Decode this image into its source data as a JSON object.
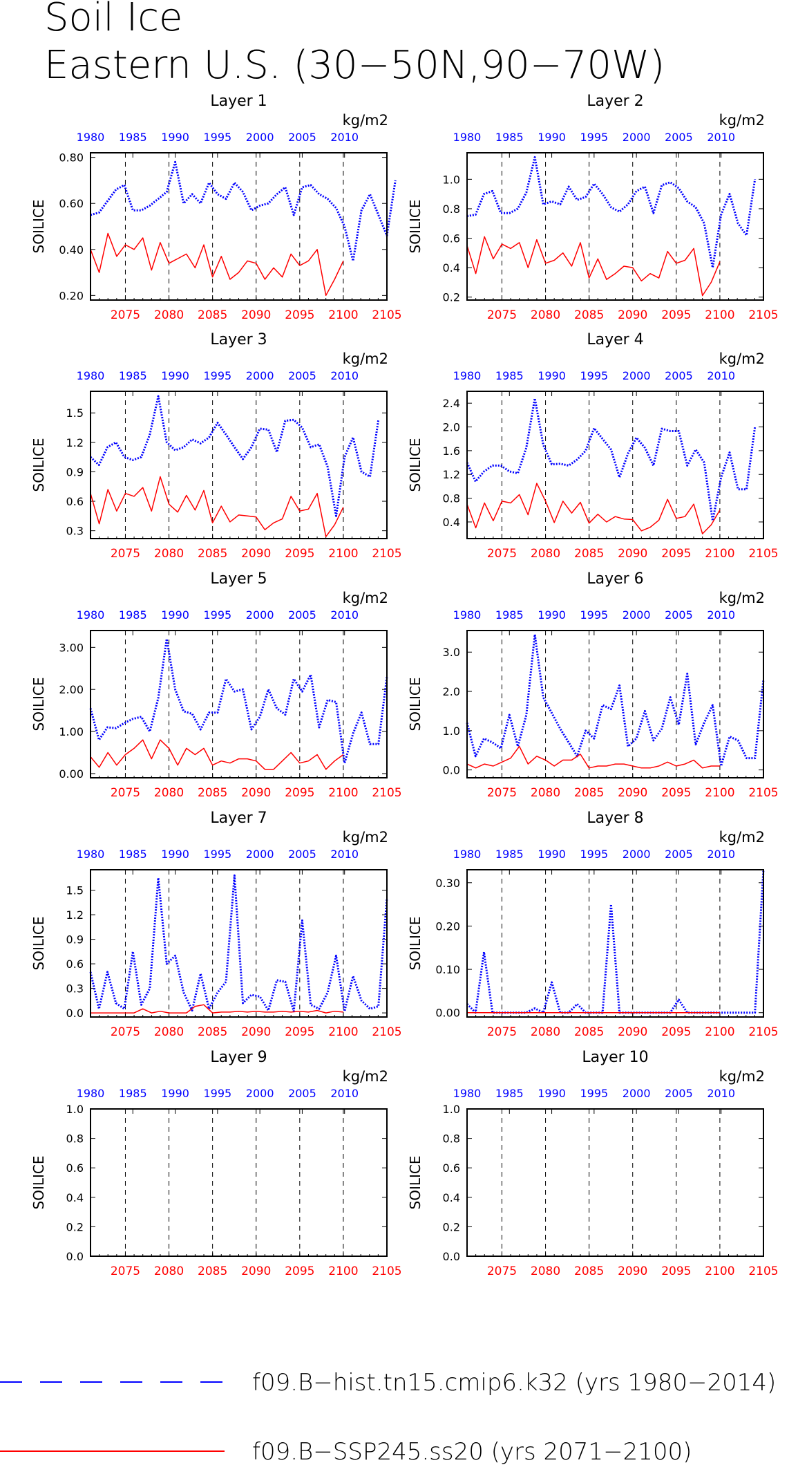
{
  "title": "Soil Ice",
  "subtitle": "Eastern U.S. (30−50N,90−70W)",
  "colors": {
    "hist": "#0000ff",
    "ssp": "#ff0000"
  },
  "legend": [
    {
      "label": "f09.B−hist.tn15.cmip6.k32 (yrs 1980−2014)",
      "color": "#0000ff",
      "style": "dashed"
    },
    {
      "label": "f09.B−SSP245.ss20 (yrs 2071−2100)",
      "color": "#ff0000",
      "style": "solid"
    }
  ],
  "chart_data": [
    {
      "type": "line",
      "title": "Layer 1",
      "units": "kg/m2",
      "ylabel": "SOILICE",
      "ylim": [
        0.18,
        0.82
      ],
      "yticks": [
        0.2,
        0.4,
        0.6,
        0.8
      ],
      "ytick_labels": [
        "0.20",
        "0.40",
        "0.60",
        "0.80"
      ],
      "x_top_ticks": [
        "1980",
        "1985",
        "1990",
        "1995",
        "2000",
        "2005",
        "2010"
      ],
      "x_bottom_ticks": [
        "2075",
        "2080",
        "2085",
        "2090",
        "2095",
        "2100",
        "2105"
      ],
      "series": [
        {
          "key": "hist",
          "x_start": 1980,
          "values": [
            0.55,
            0.56,
            0.61,
            0.66,
            0.68,
            0.57,
            0.57,
            0.59,
            0.62,
            0.65,
            0.78,
            0.6,
            0.64,
            0.6,
            0.69,
            0.64,
            0.62,
            0.69,
            0.65,
            0.57,
            0.59,
            0.6,
            0.64,
            0.67,
            0.55,
            0.67,
            0.68,
            0.64,
            0.62,
            0.58,
            0.5,
            0.35,
            0.57,
            0.64,
            0.55,
            0.46,
            0.7
          ]
        },
        {
          "key": "ssp",
          "x_start": 2071,
          "values": [
            0.4,
            0.3,
            0.47,
            0.37,
            0.42,
            0.4,
            0.45,
            0.31,
            0.43,
            0.34,
            0.36,
            0.38,
            0.32,
            0.42,
            0.28,
            0.37,
            0.27,
            0.3,
            0.35,
            0.34,
            0.27,
            0.32,
            0.28,
            0.38,
            0.33,
            0.35,
            0.4,
            0.2,
            0.27,
            0.35
          ]
        }
      ]
    },
    {
      "type": "line",
      "title": "Layer 2",
      "units": "kg/m2",
      "ylabel": "SOILICE",
      "ylim": [
        0.18,
        1.18
      ],
      "yticks": [
        0.2,
        0.4,
        0.6,
        0.8,
        1.0
      ],
      "ytick_labels": [
        "0.2",
        "0.4",
        "0.6",
        "0.8",
        "1.0"
      ],
      "x_top_ticks": [
        "1980",
        "1985",
        "1990",
        "1995",
        "2000",
        "2005",
        "2010"
      ],
      "x_bottom_ticks": [
        "2075",
        "2080",
        "2085",
        "2090",
        "2095",
        "2100",
        "2105"
      ],
      "series": [
        {
          "key": "hist",
          "x_start": 1980,
          "values": [
            0.75,
            0.76,
            0.9,
            0.92,
            0.77,
            0.77,
            0.8,
            0.91,
            1.15,
            0.83,
            0.85,
            0.83,
            0.95,
            0.86,
            0.88,
            0.97,
            0.9,
            0.81,
            0.78,
            0.83,
            0.92,
            0.95,
            0.77,
            0.96,
            0.98,
            0.94,
            0.85,
            0.81,
            0.7,
            0.4,
            0.76,
            0.9,
            0.7,
            0.62,
            1.0
          ]
        },
        {
          "key": "ssp",
          "x_start": 2071,
          "values": [
            0.55,
            0.36,
            0.61,
            0.46,
            0.56,
            0.53,
            0.57,
            0.4,
            0.59,
            0.43,
            0.45,
            0.5,
            0.41,
            0.57,
            0.33,
            0.46,
            0.32,
            0.36,
            0.41,
            0.4,
            0.31,
            0.36,
            0.33,
            0.51,
            0.43,
            0.45,
            0.53,
            0.21,
            0.3,
            0.44
          ]
        }
      ]
    },
    {
      "type": "line",
      "title": "Layer 3",
      "units": "kg/m2",
      "ylabel": "SOILICE",
      "ylim": [
        0.22,
        1.72
      ],
      "yticks": [
        0.3,
        0.6,
        0.9,
        1.2,
        1.5
      ],
      "ytick_labels": [
        "0.3",
        "0.6",
        "0.9",
        "1.2",
        "1.5"
      ],
      "x_top_ticks": [
        "1980",
        "1985",
        "1990",
        "1995",
        "2000",
        "2005",
        "2010"
      ],
      "x_bottom_ticks": [
        "2075",
        "2080",
        "2085",
        "2090",
        "2095",
        "2100",
        "2105"
      ],
      "series": [
        {
          "key": "hist",
          "x_start": 1980,
          "values": [
            1.05,
            0.97,
            1.15,
            1.2,
            1.05,
            1.02,
            1.05,
            1.28,
            1.67,
            1.2,
            1.12,
            1.15,
            1.23,
            1.19,
            1.25,
            1.4,
            1.28,
            1.15,
            1.03,
            1.15,
            1.34,
            1.33,
            1.1,
            1.42,
            1.43,
            1.35,
            1.15,
            1.18,
            0.95,
            0.45,
            1.05,
            1.25,
            0.9,
            0.85,
            1.43
          ]
        },
        {
          "key": "ssp",
          "x_start": 2071,
          "values": [
            0.68,
            0.37,
            0.72,
            0.5,
            0.68,
            0.65,
            0.74,
            0.5,
            0.85,
            0.57,
            0.49,
            0.66,
            0.51,
            0.71,
            0.38,
            0.55,
            0.39,
            0.46,
            0.45,
            0.44,
            0.31,
            0.38,
            0.42,
            0.65,
            0.5,
            0.52,
            0.68,
            0.24,
            0.36,
            0.54
          ]
        }
      ]
    },
    {
      "type": "line",
      "title": "Layer 4",
      "units": "kg/m2",
      "ylabel": "SOILICE",
      "ylim": [
        0.12,
        2.6
      ],
      "yticks": [
        0.4,
        0.8,
        1.2,
        1.6,
        2.0,
        2.4
      ],
      "ytick_labels": [
        "0.4",
        "0.8",
        "1.2",
        "1.6",
        "2.0",
        "2.4"
      ],
      "x_top_ticks": [
        "1980",
        "1985",
        "1990",
        "1995",
        "2000",
        "2005",
        "2010"
      ],
      "x_bottom_ticks": [
        "2075",
        "2080",
        "2085",
        "2090",
        "2095",
        "2100",
        "2105"
      ],
      "series": [
        {
          "key": "hist",
          "x_start": 1980,
          "values": [
            1.4,
            1.08,
            1.25,
            1.35,
            1.35,
            1.25,
            1.22,
            1.65,
            2.48,
            1.7,
            1.37,
            1.38,
            1.35,
            1.45,
            1.6,
            1.98,
            1.8,
            1.62,
            1.15,
            1.55,
            1.82,
            1.65,
            1.35,
            1.97,
            1.93,
            1.93,
            1.35,
            1.62,
            1.4,
            0.42,
            1.15,
            1.57,
            0.95,
            0.95,
            2.0
          ]
        },
        {
          "key": "ssp",
          "x_start": 2071,
          "values": [
            0.7,
            0.3,
            0.72,
            0.42,
            0.75,
            0.72,
            0.86,
            0.52,
            1.05,
            0.75,
            0.39,
            0.75,
            0.55,
            0.73,
            0.38,
            0.53,
            0.4,
            0.49,
            0.45,
            0.44,
            0.25,
            0.31,
            0.43,
            0.78,
            0.46,
            0.49,
            0.7,
            0.2,
            0.35,
            0.6
          ]
        }
      ]
    },
    {
      "type": "line",
      "title": "Layer 5",
      "units": "kg/m2",
      "ylabel": "SOILICE",
      "ylim": [
        -0.1,
        3.4
      ],
      "yticks": [
        0.0,
        1.0,
        2.0,
        3.0
      ],
      "ytick_labels": [
        "0.00",
        "1.00",
        "2.00",
        "3.00"
      ],
      "x_top_ticks": [
        "1980",
        "1985",
        "1990",
        "1995",
        "2000",
        "2005",
        "2010"
      ],
      "x_bottom_ticks": [
        "2075",
        "2080",
        "2085",
        "2090",
        "2095",
        "2100",
        "2105"
      ],
      "series": [
        {
          "key": "hist",
          "x_start": 1980,
          "values": [
            1.55,
            0.8,
            1.1,
            1.08,
            1.2,
            1.3,
            1.35,
            1.0,
            1.8,
            3.2,
            2.0,
            1.48,
            1.42,
            1.05,
            1.45,
            1.45,
            2.25,
            1.95,
            2.0,
            1.05,
            1.35,
            2.0,
            1.55,
            1.4,
            2.25,
            1.95,
            2.35,
            1.1,
            1.75,
            1.7,
            0.25,
            0.95,
            1.45,
            0.7,
            0.7,
            2.3
          ]
        },
        {
          "key": "ssp",
          "x_start": 2071,
          "values": [
            0.4,
            0.15,
            0.5,
            0.2,
            0.45,
            0.6,
            0.8,
            0.35,
            0.8,
            0.6,
            0.2,
            0.6,
            0.45,
            0.6,
            0.2,
            0.3,
            0.25,
            0.35,
            0.35,
            0.3,
            0.1,
            0.1,
            0.3,
            0.5,
            0.25,
            0.3,
            0.45,
            0.1,
            0.3,
            0.45
          ]
        }
      ]
    },
    {
      "type": "line",
      "title": "Layer 6",
      "units": "kg/m2",
      "ylabel": "SOILICE",
      "ylim": [
        -0.2,
        3.55
      ],
      "yticks": [
        0.0,
        1.0,
        2.0,
        3.0
      ],
      "ytick_labels": [
        "0.0",
        "1.0",
        "2.0",
        "3.0"
      ],
      "x_top_ticks": [
        "1980",
        "1985",
        "1990",
        "1995",
        "2000",
        "2005",
        "2010"
      ],
      "x_bottom_ticks": [
        "2075",
        "2080",
        "2085",
        "2090",
        "2095",
        "2100",
        "2105"
      ],
      "series": [
        {
          "key": "hist",
          "x_start": 1980,
          "values": [
            1.2,
            0.35,
            0.8,
            0.7,
            0.55,
            1.4,
            0.6,
            1.4,
            3.45,
            1.85,
            1.45,
            1.05,
            0.7,
            0.35,
            1.0,
            0.8,
            1.65,
            1.55,
            2.15,
            0.6,
            0.8,
            1.5,
            0.75,
            1.05,
            1.85,
            1.15,
            2.45,
            0.65,
            1.2,
            1.65,
            0.1,
            0.85,
            0.75,
            0.3,
            0.3,
            2.3
          ]
        },
        {
          "key": "ssp",
          "x_start": 2071,
          "values": [
            0.15,
            0.05,
            0.15,
            0.1,
            0.2,
            0.3,
            0.6,
            0.15,
            0.35,
            0.25,
            0.1,
            0.25,
            0.25,
            0.4,
            0.05,
            0.1,
            0.1,
            0.15,
            0.15,
            0.1,
            0.05,
            0.05,
            0.1,
            0.2,
            0.1,
            0.15,
            0.25,
            0.05,
            0.1,
            0.1
          ]
        }
      ]
    },
    {
      "type": "line",
      "title": "Layer 7",
      "units": "kg/m2",
      "ylabel": "SOILICE",
      "ylim": [
        -0.05,
        1.75
      ],
      "yticks": [
        0.0,
        0.3,
        0.6,
        0.9,
        1.2,
        1.5
      ],
      "ytick_labels": [
        "0.0",
        "0.3",
        "0.6",
        "0.9",
        "1.2",
        "1.5"
      ],
      "x_top_ticks": [
        "1980",
        "1985",
        "1990",
        "1995",
        "2000",
        "2005",
        "2010"
      ],
      "x_bottom_ticks": [
        "2075",
        "2080",
        "2085",
        "2090",
        "2095",
        "2100",
        "2105"
      ],
      "series": [
        {
          "key": "hist",
          "x_start": 1980,
          "values": [
            0.5,
            0.05,
            0.5,
            0.12,
            0.05,
            0.75,
            0.1,
            0.3,
            1.65,
            0.6,
            0.7,
            0.25,
            0.03,
            0.48,
            0.05,
            0.25,
            0.38,
            1.68,
            0.12,
            0.22,
            0.2,
            0.03,
            0.4,
            0.38,
            0.02,
            1.13,
            0.1,
            0.05,
            0.25,
            0.7,
            0.02,
            0.45,
            0.15,
            0.05,
            0.08,
            1.4
          ]
        },
        {
          "key": "ssp",
          "x_start": 2071,
          "values": [
            0.0,
            0.0,
            0.0,
            0.0,
            0.0,
            0.0,
            0.05,
            0.0,
            0.02,
            0.0,
            0.0,
            0.0,
            0.08,
            0.1,
            0.0,
            0.01,
            0.01,
            0.02,
            0.01,
            0.02,
            0.01,
            0.01,
            0.02,
            0.01,
            0.02,
            0.01,
            0.03,
            0.0,
            0.02,
            0.01
          ]
        }
      ]
    },
    {
      "type": "line",
      "title": "Layer 8",
      "units": "kg/m2",
      "ylabel": "SOILICE",
      "ylim": [
        -0.01,
        0.33
      ],
      "yticks": [
        0.0,
        0.1,
        0.2,
        0.3
      ],
      "ytick_labels": [
        "0.00",
        "0.10",
        "0.20",
        "0.30"
      ],
      "x_top_ticks": [
        "1980",
        "1985",
        "1990",
        "1995",
        "2000",
        "2005",
        "2010"
      ],
      "x_bottom_ticks": [
        "2075",
        "2080",
        "2085",
        "2090",
        "2095",
        "2100",
        "2105"
      ],
      "series": [
        {
          "key": "hist",
          "x_start": 1980,
          "values": [
            0.02,
            0.0,
            0.14,
            0.0,
            0.0,
            0.0,
            0.0,
            0.0,
            0.01,
            0.0,
            0.07,
            0.0,
            0.0,
            0.02,
            0.0,
            0.0,
            0.0,
            0.25,
            0.0,
            0.0,
            0.0,
            0.0,
            0.0,
            0.0,
            0.0,
            0.03,
            0.0,
            0.0,
            0.0,
            0.0,
            0.0,
            0.0,
            0.0,
            0.0,
            0.0,
            0.33
          ]
        },
        {
          "key": "ssp",
          "x_start": 2071,
          "values": [
            0.0,
            0.0,
            0.0,
            0.0,
            0.0,
            0.0,
            0.0,
            0.0,
            0.0,
            0.0,
            0.0,
            0.0,
            0.0,
            0.0,
            0.0,
            0.0,
            0.0,
            0.0,
            0.0,
            0.0,
            0.0,
            0.0,
            0.0,
            0.0,
            0.0,
            0.0,
            0.0,
            0.0,
            0.0,
            0.0
          ]
        }
      ]
    },
    {
      "type": "line",
      "title": "Layer 9",
      "units": "kg/m2",
      "ylabel": "SOILICE",
      "ylim": [
        0,
        1
      ],
      "yticks": [
        0.0,
        0.2,
        0.4,
        0.6,
        0.8,
        1.0
      ],
      "ytick_labels": [
        "0.0",
        "0.2",
        "0.4",
        "0.6",
        "0.8",
        "1.0"
      ],
      "x_top_ticks": [
        "1980",
        "1985",
        "1990",
        "1995",
        "2000",
        "2005",
        "2010"
      ],
      "x_bottom_ticks": [
        "2075",
        "2080",
        "2085",
        "2090",
        "2095",
        "2100",
        "2105"
      ],
      "series": []
    },
    {
      "type": "line",
      "title": "Layer 10",
      "units": "kg/m2",
      "ylabel": "SOILICE",
      "ylim": [
        0,
        1
      ],
      "yticks": [
        0.0,
        0.2,
        0.4,
        0.6,
        0.8,
        1.0
      ],
      "ytick_labels": [
        "0.0",
        "0.2",
        "0.4",
        "0.6",
        "0.8",
        "1.0"
      ],
      "x_top_ticks": [
        "1980",
        "1985",
        "1990",
        "1995",
        "2000",
        "2005",
        "2010"
      ],
      "x_bottom_ticks": [
        "2075",
        "2080",
        "2085",
        "2090",
        "2095",
        "2100",
        "2105"
      ],
      "series": []
    }
  ]
}
